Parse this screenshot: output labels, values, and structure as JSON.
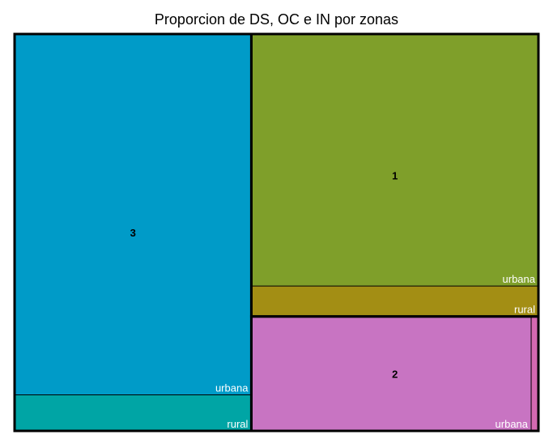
{
  "chart_data": {
    "type": "treemap",
    "title": "Proporcion de DS, OC e IN por zonas",
    "groups": [
      {
        "name": "3",
        "color": "#009bc8",
        "children": [
          {
            "name": "urbana",
            "value": 0.411,
            "color": "#009bc8"
          },
          {
            "name": "rural",
            "value": 0.041,
            "color": "#00a5a5"
          }
        ]
      },
      {
        "name": "1",
        "color": "#7f9f2a",
        "children": [
          {
            "name": "urbana",
            "value": 0.348,
            "color": "#7f9f2a"
          },
          {
            "name": "rural",
            "value": 0.042,
            "color": "#a38e14"
          }
        ]
      },
      {
        "name": "2",
        "color": "#c874c2",
        "children": [
          {
            "name": "urbana",
            "value": 0.154,
            "color": "#c874c2"
          },
          {
            "name": "",
            "value": 0.004,
            "color": "#d469b1"
          }
        ]
      }
    ]
  }
}
